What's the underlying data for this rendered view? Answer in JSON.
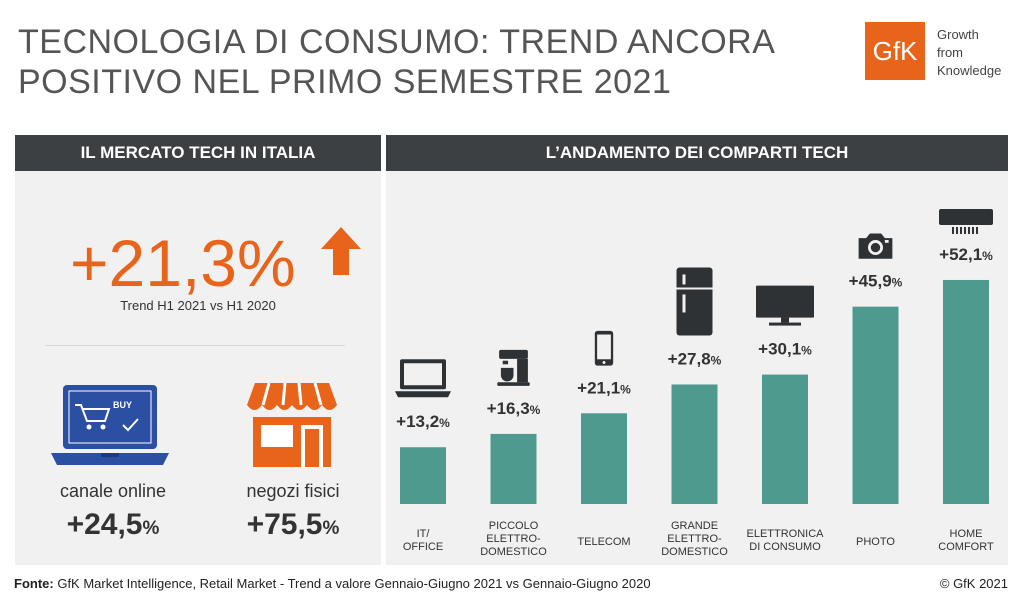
{
  "header": {
    "title_line1": "TECNOLOGIA DI CONSUMO: TREND ANCORA",
    "title_line2": "POSITIVO NEL PRIMO SEMESTRE 2021",
    "logo_text": "GfK",
    "tagline_line1": "Growth",
    "tagline_line2": "from",
    "tagline_line3": "Knowledge"
  },
  "left_panel": {
    "heading": "IL MERCATO TECH IN ITALIA",
    "headline_value": "+21,3%",
    "headline_label": "Trend H1 2021 vs H1 2020",
    "online_badge": "BUY",
    "online_label": "canale online",
    "online_value": "+24,5",
    "stores_label": "negozi fisici",
    "stores_value": "+75,5",
    "percent_sign": "%"
  },
  "right_panel": {
    "heading": "L’ANDAMENTO DEI COMPARTI TECH"
  },
  "chart_data": {
    "type": "bar",
    "categories": [
      [
        "IT/",
        "OFFICE"
      ],
      [
        "PICCOLO",
        "ELETTRO-",
        "DOMESTICO"
      ],
      [
        "TELECOM"
      ],
      [
        "GRANDE",
        "ELETTRO-",
        "DOMESTICO"
      ],
      [
        "ELETTRONICA",
        "DI CONSUMO"
      ],
      [
        "PHOTO"
      ],
      [
        "HOME",
        "COMFORT"
      ]
    ],
    "values": [
      13.2,
      16.3,
      21.1,
      27.8,
      30.1,
      45.9,
      52.1
    ],
    "value_labels": [
      "+13,2",
      "+16,3",
      "+21,1",
      "+27,8",
      "+30,1",
      "+45,9",
      "+52,1"
    ],
    "value_suffix": "%",
    "icons": [
      "laptop-icon",
      "coffee-machine-icon",
      "smartphone-icon",
      "fridge-icon",
      "tv-icon",
      "camera-icon",
      "air-conditioner-icon"
    ],
    "bar_color": "#4e9a8f"
  },
  "footer": {
    "source_label": "Fonte:",
    "source_text": " GfK Market Intelligence, Retail Market - Trend a valore Gennaio-Giugno 2021 vs Gennaio-Giugno 2020",
    "copyright": "© GfK 2021"
  },
  "colors": {
    "accent": "#e8641b",
    "header_bg": "#3d4042",
    "panel_bg": "#f1f1f1",
    "online_blue": "#2b4fa3"
  }
}
